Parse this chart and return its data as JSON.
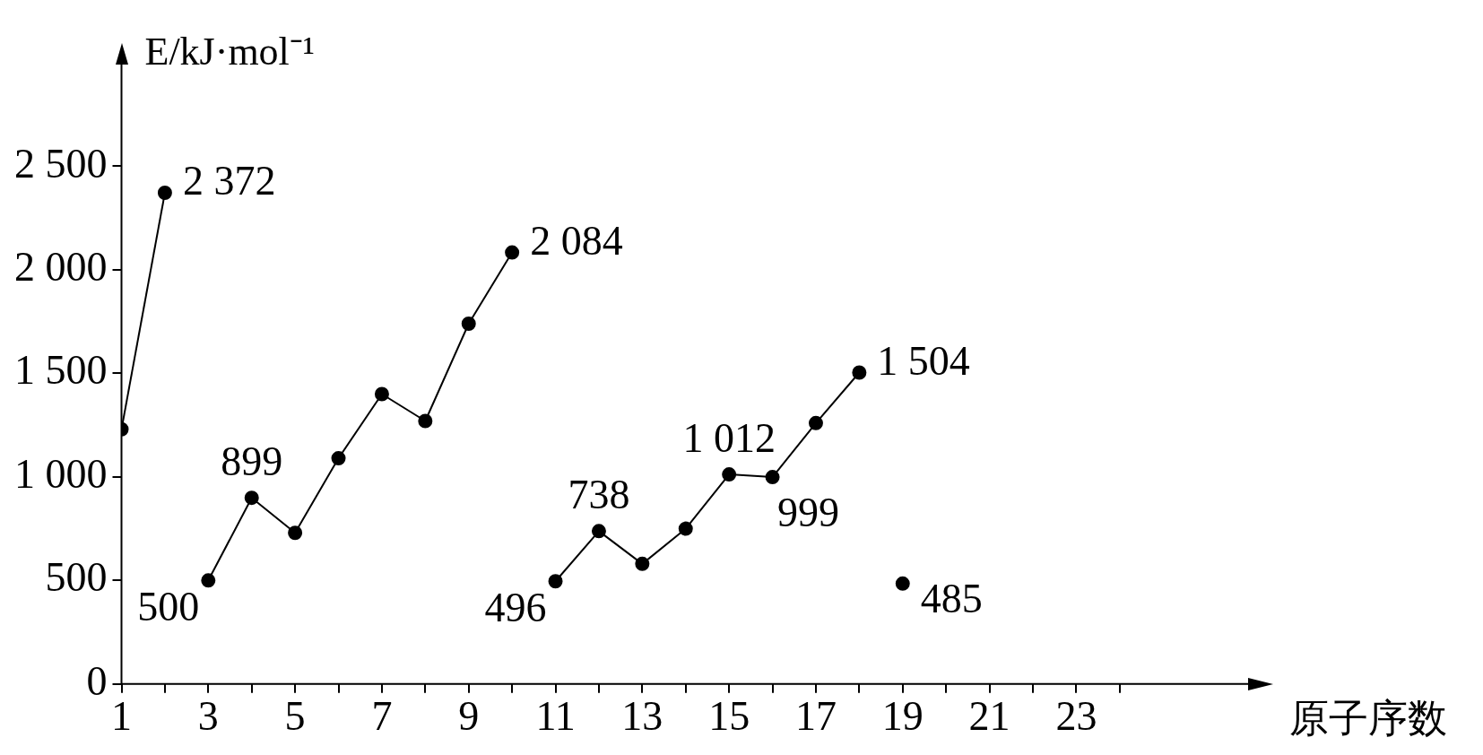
{
  "chart_data": {
    "type": "line",
    "xlabel": "原子序数",
    "ylabel": "E/kJ·mol⁻¹",
    "xlim": [
      1,
      27
    ],
    "ylim": [
      0,
      3000
    ],
    "xticks": [
      1,
      {
        "value": 2,
        "label": null
      },
      3,
      {
        "value": 4,
        "label": null
      },
      5,
      {
        "value": 6,
        "label": null
      },
      7,
      {
        "value": 8,
        "label": null
      },
      9,
      {
        "value": 10,
        "label": null
      },
      11,
      {
        "value": 12,
        "label": null
      },
      13,
      {
        "value": 14,
        "label": null
      },
      15,
      {
        "value": 16,
        "label": null
      },
      17,
      {
        "value": 18,
        "label": null
      },
      19,
      {
        "value": 20,
        "label": null
      },
      21,
      {
        "value": 22,
        "label": null
      },
      23,
      {
        "value": 24,
        "label": null
      }
    ],
    "yticks": [
      0,
      500,
      {
        "value": 1000,
        "label": "1 000"
      },
      {
        "value": 1500,
        "label": "1 500"
      },
      {
        "value": 2000,
        "label": "2 000"
      },
      {
        "value": 2500,
        "label": "2 500"
      }
    ],
    "marker": "circle",
    "grid": false,
    "legend": false,
    "series": [
      {
        "color": "#000000",
        "x": [
          1,
          2
        ],
        "values": [
          1230,
          2372
        ],
        "value_labels": [
          null,
          "2 372"
        ]
      },
      {
        "color": "#000000",
        "x": [
          3,
          4,
          5,
          6,
          7,
          8,
          9,
          10
        ],
        "values": [
          500,
          899,
          730,
          1090,
          1400,
          1270,
          1740,
          2084
        ],
        "value_labels": [
          "500",
          "899",
          null,
          null,
          null,
          null,
          null,
          "2 084"
        ]
      },
      {
        "color": "#000000",
        "x": [
          11,
          12,
          13,
          14,
          15,
          16,
          17,
          18
        ],
        "values": [
          496,
          738,
          580,
          750,
          1012,
          999,
          1260,
          1504
        ],
        "value_labels": [
          "496",
          "738",
          null,
          null,
          "1 012",
          "999",
          null,
          "1 504"
        ]
      },
      {
        "type": "scatter",
        "color": "#000000",
        "x": [
          19
        ],
        "values": [
          485
        ],
        "value_labels": [
          "485"
        ]
      }
    ]
  }
}
